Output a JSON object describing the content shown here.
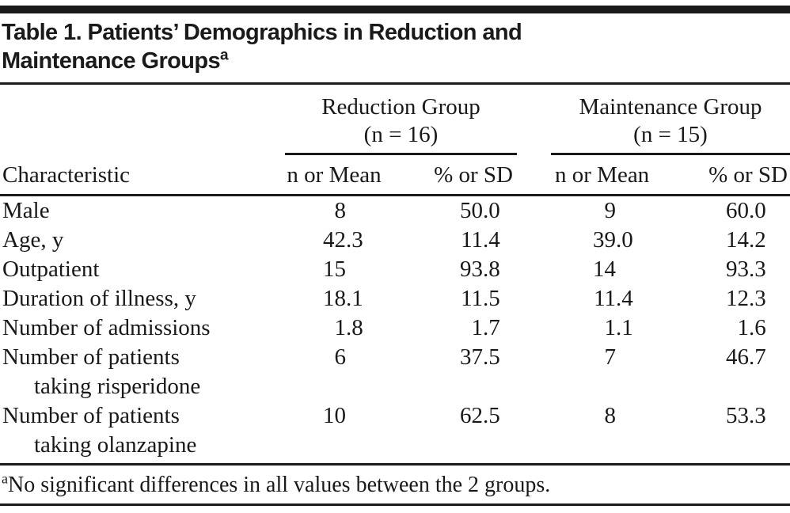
{
  "page": {
    "background": "#ffffff",
    "text_color": "#191919",
    "rule_color": "#1a1a1a"
  },
  "title": {
    "line1": "Table 1. Patients’ Demographics in Reduction and",
    "line2": "Maintenance Groups",
    "superscript": "a"
  },
  "table": {
    "characteristic_header": "Characteristic",
    "groups": [
      {
        "name": "Reduction Group",
        "n_label": "(n = 16)",
        "columns": [
          "n or Mean",
          "% or SD"
        ]
      },
      {
        "name": "Maintenance Group",
        "n_label": "(n = 15)",
        "columns": [
          "n or Mean",
          "% or SD"
        ]
      }
    ],
    "rows": [
      {
        "label": "Male",
        "values": [
          "8",
          "50.0",
          "9",
          "60.0"
        ]
      },
      {
        "label": "Age, y",
        "values": [
          "42.3",
          "11.4",
          "39.0",
          "14.2"
        ]
      },
      {
        "label": "Outpatient",
        "values": [
          "15",
          "93.8",
          "14",
          "93.3"
        ]
      },
      {
        "label": "Duration of illness, y",
        "values": [
          "18.1",
          "11.5",
          "11.4",
          "12.3"
        ]
      },
      {
        "label": "Number of admissions",
        "values": [
          "1.8",
          "1.7",
          "1.1",
          "1.6"
        ]
      },
      {
        "label": "Number of patients",
        "sublabel": "taking risperidone",
        "values": [
          "6",
          "37.5",
          "7",
          "46.7"
        ]
      },
      {
        "label": "Number of patients",
        "sublabel": "taking olanzapine",
        "values": [
          "10",
          "62.5",
          "8",
          "53.3"
        ]
      }
    ]
  },
  "footnote": {
    "marker": "a",
    "text": "No significant differences in all values between the 2 groups."
  }
}
